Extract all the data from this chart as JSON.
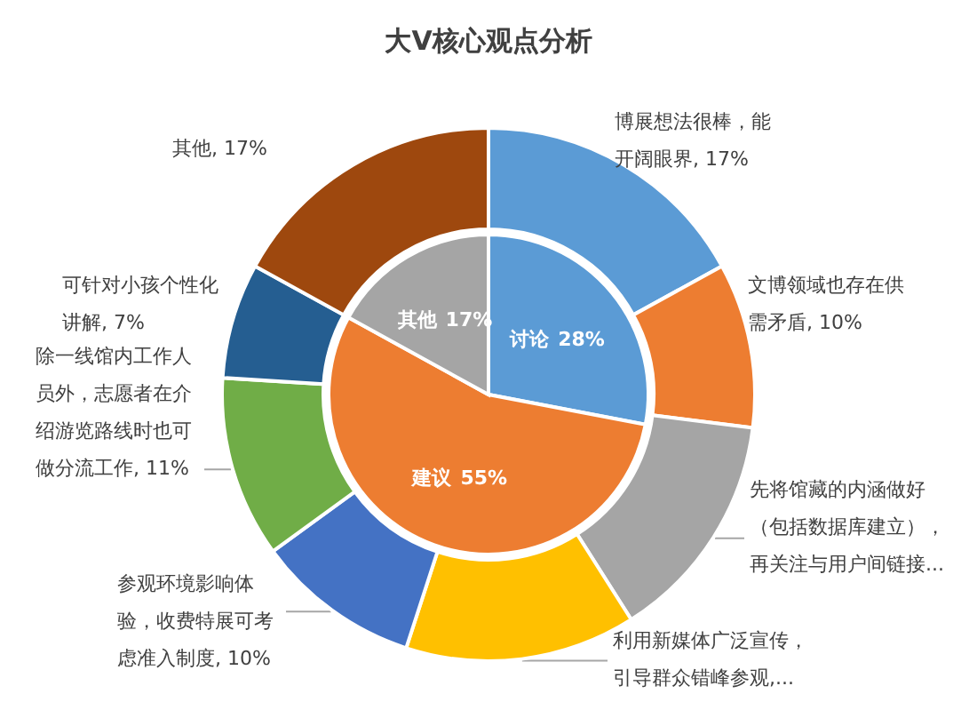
{
  "chart_data": [
    {
      "type": "donut",
      "title": "大V核心观点分析",
      "categories": [
        "博展想法很棒，能开阔眼界",
        "文博领域也存在供需矛盾",
        "先将馆藏的内涵做好（包括数据库建立），再关注与用户间链接...",
        "利用新媒体广泛宣传，引导群众错峰参观,...",
        "参观环境影响体验，收费特展可考虑准入制度",
        "除一线馆内工作人员外，志愿者在介绍游览路线时也可做分流工作",
        "可针对小孩个性化讲解",
        "其他"
      ],
      "values": [
        17,
        10,
        14,
        14,
        10,
        11,
        7,
        17
      ],
      "value_labels": [
        "17%",
        "10%",
        null,
        null,
        "10%",
        "11%",
        "7%",
        "17%"
      ],
      "colors": [
        "#5b9bd5",
        "#ed7d31",
        "#a5a5a5",
        "#ffc000",
        "#4472c4",
        "#70ad47",
        "#255e91",
        "#9e480e"
      ]
    },
    {
      "type": "pie",
      "categories": [
        "讨论",
        "建议",
        "其他"
      ],
      "values": [
        28,
        55,
        17
      ],
      "value_labels": [
        "28%",
        "55%",
        "17%"
      ],
      "colors": [
        "#5b9bd5",
        "#ed7d31",
        "#a5a5a5"
      ]
    }
  ]
}
